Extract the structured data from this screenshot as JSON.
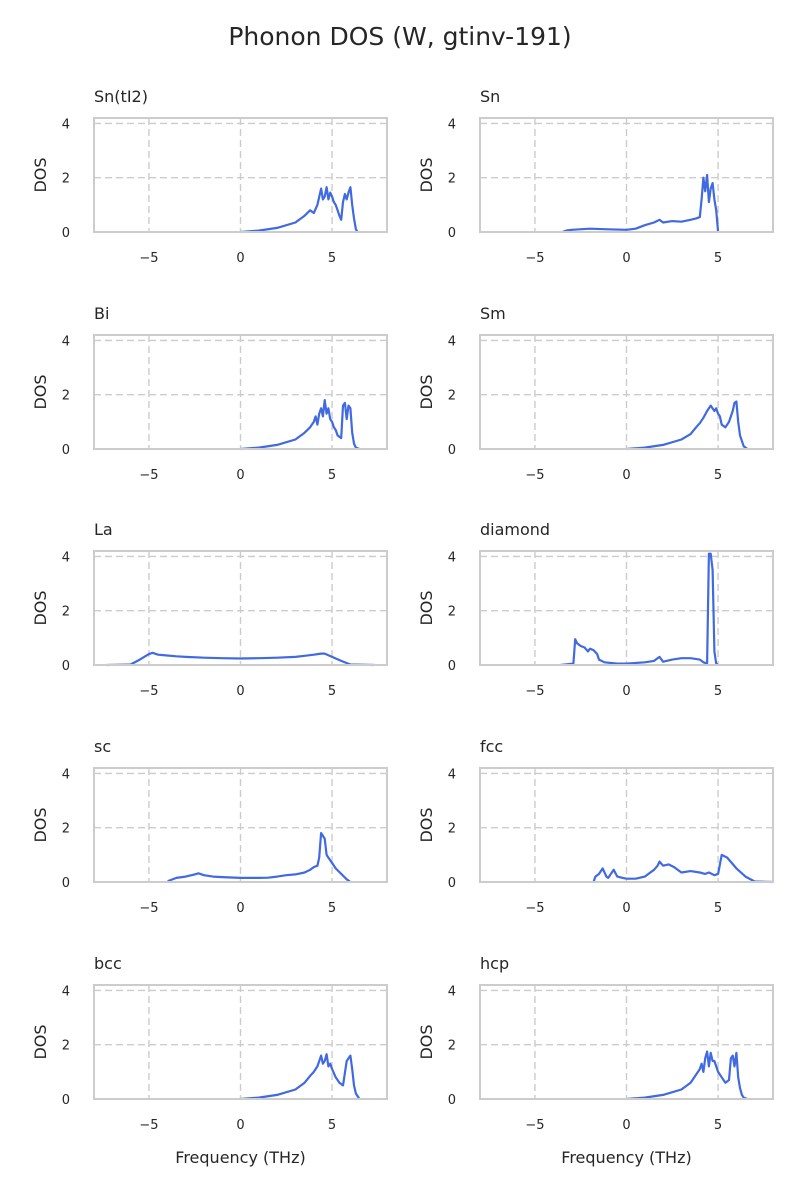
{
  "title": "Phonon DOS (W, gtinv-191)",
  "line_color": "#4169e1",
  "chart_data": [
    {
      "type": "line",
      "title": "Sn(tI2)",
      "xlabel": "",
      "ylabel": "DOS",
      "xlim": [
        -8,
        8
      ],
      "ylim": [
        0,
        4.2
      ],
      "xticks": [
        "−5",
        "0",
        "5"
      ],
      "yticks": [
        "0",
        "2",
        "4"
      ],
      "grid": true,
      "legend": "none",
      "x": [
        -8,
        0,
        1,
        2,
        3,
        3.5,
        3.8,
        4,
        4.2,
        4.4,
        4.5,
        4.6,
        4.7,
        4.8,
        4.9,
        5.0,
        5.1,
        5.2,
        5.3,
        5.4,
        5.5,
        5.6,
        5.7,
        5.8,
        5.9,
        6.0,
        6.1,
        6.2,
        6.3,
        6.4,
        8
      ],
      "y": [
        0,
        0,
        0.05,
        0.15,
        0.35,
        0.6,
        0.8,
        0.7,
        1.0,
        1.6,
        1.2,
        1.3,
        1.65,
        1.2,
        1.45,
        1.3,
        1.1,
        1.0,
        0.8,
        0.6,
        0.45,
        1.1,
        1.4,
        1.2,
        1.45,
        1.65,
        1.0,
        0.5,
        0.1,
        0,
        0
      ]
    },
    {
      "type": "line",
      "title": "Sn",
      "xlabel": "",
      "ylabel": "DOS",
      "xlim": [
        -8,
        8
      ],
      "ylim": [
        0,
        4.2
      ],
      "xticks": [
        "−5",
        "0",
        "5"
      ],
      "yticks": [
        "0",
        "2",
        "4"
      ],
      "grid": true,
      "legend": "none",
      "x": [
        -8,
        -3.5,
        -3.3,
        -3,
        -2,
        -1,
        0,
        0.5,
        1,
        1.5,
        1.8,
        2,
        2.5,
        3,
        3.5,
        3.8,
        4,
        4.1,
        4.2,
        4.3,
        4.4,
        4.5,
        4.6,
        4.7,
        4.8,
        4.9,
        5.0,
        8
      ],
      "y": [
        0,
        0,
        0.05,
        0.08,
        0.12,
        0.1,
        0.08,
        0.12,
        0.25,
        0.35,
        0.45,
        0.35,
        0.4,
        0.38,
        0.45,
        0.5,
        0.55,
        1.2,
        2.0,
        1.5,
        2.1,
        1.1,
        1.6,
        1.8,
        1.2,
        0.8,
        0,
        0
      ]
    },
    {
      "type": "line",
      "title": "Bi",
      "xlabel": "",
      "ylabel": "DOS",
      "xlim": [
        -8,
        8
      ],
      "ylim": [
        0,
        4.2
      ],
      "xticks": [
        "−5",
        "0",
        "5"
      ],
      "yticks": [
        "0",
        "2",
        "4"
      ],
      "grid": true,
      "legend": "none",
      "x": [
        -8,
        0,
        1,
        2,
        3,
        3.5,
        3.8,
        4,
        4.1,
        4.2,
        4.3,
        4.4,
        4.5,
        4.6,
        4.7,
        4.8,
        4.9,
        5.0,
        5.1,
        5.2,
        5.3,
        5.4,
        5.5,
        5.6,
        5.7,
        5.8,
        5.9,
        6.0,
        6.1,
        6.2,
        6.3,
        6.5,
        8
      ],
      "y": [
        0,
        0,
        0.05,
        0.15,
        0.35,
        0.6,
        0.8,
        1.0,
        1.2,
        0.9,
        1.3,
        1.5,
        1.2,
        1.8,
        1.3,
        1.5,
        1.1,
        1.0,
        0.8,
        0.7,
        0.5,
        0.45,
        0.4,
        1.6,
        1.7,
        1.1,
        1.6,
        1.5,
        0.6,
        0.2,
        0.05,
        0,
        0
      ]
    },
    {
      "type": "line",
      "title": "Sm",
      "xlabel": "",
      "ylabel": "DOS",
      "xlim": [
        -8,
        8
      ],
      "ylim": [
        0,
        4.2
      ],
      "xticks": [
        "−5",
        "0",
        "5"
      ],
      "yticks": [
        "0",
        "2",
        "4"
      ],
      "grid": true,
      "legend": "none",
      "x": [
        -8,
        0,
        1,
        2,
        3,
        3.5,
        3.8,
        4,
        4.2,
        4.4,
        4.6,
        4.8,
        4.9,
        5.0,
        5.1,
        5.2,
        5.4,
        5.6,
        5.8,
        5.9,
        6.0,
        6.1,
        6.2,
        6.4,
        6.6,
        8
      ],
      "y": [
        0,
        0,
        0.05,
        0.15,
        0.35,
        0.55,
        0.8,
        0.95,
        1.15,
        1.4,
        1.6,
        1.4,
        1.5,
        1.3,
        1.2,
        0.9,
        0.8,
        1.0,
        1.4,
        1.7,
        1.75,
        1.0,
        0.5,
        0.1,
        0,
        0
      ]
    },
    {
      "type": "line",
      "title": "La",
      "xlabel": "",
      "ylabel": "DOS",
      "xlim": [
        -8,
        8
      ],
      "ylim": [
        0,
        4.2
      ],
      "xticks": [
        "−5",
        "0",
        "5"
      ],
      "yticks": [
        "0",
        "2",
        "4"
      ],
      "grid": true,
      "legend": "none",
      "x": [
        -8,
        -7.3,
        -6,
        -5.5,
        -5,
        -4.8,
        -4.5,
        -4,
        -3.5,
        -3,
        -2,
        -1,
        0,
        1,
        2,
        3,
        3.5,
        4,
        4.4,
        4.6,
        5,
        5.5,
        6,
        7.3,
        8
      ],
      "y": [
        0,
        0,
        0.02,
        0.2,
        0.4,
        0.45,
        0.38,
        0.35,
        0.32,
        0.3,
        0.27,
        0.25,
        0.24,
        0.25,
        0.27,
        0.3,
        0.34,
        0.38,
        0.42,
        0.42,
        0.3,
        0.15,
        0.02,
        0,
        0
      ]
    },
    {
      "type": "line",
      "title": "diamond",
      "xlabel": "",
      "ylabel": "DOS",
      "xlim": [
        -8,
        8
      ],
      "ylim": [
        0,
        4.2
      ],
      "xticks": [
        "−5",
        "0",
        "5"
      ],
      "yticks": [
        "0",
        "2",
        "4"
      ],
      "grid": true,
      "legend": "none",
      "x": [
        -8,
        -3.6,
        -2.9,
        -2.8,
        -2.7,
        -2.5,
        -2.3,
        -2.1,
        -2,
        -1.8,
        -1.6,
        -1.5,
        -1.2,
        -0.5,
        0,
        1,
        1.5,
        1.8,
        2,
        2.5,
        3,
        3.5,
        4,
        4.2,
        4.4,
        4.5,
        4.55,
        4.6,
        4.7,
        4.8,
        4.9,
        5.0,
        8
      ],
      "y": [
        0,
        0,
        0.05,
        0.95,
        0.8,
        0.7,
        0.65,
        0.5,
        0.6,
        0.55,
        0.4,
        0.2,
        0.1,
        0.05,
        0.05,
        0.1,
        0.15,
        0.3,
        0.12,
        0.2,
        0.25,
        0.25,
        0.2,
        0.1,
        0.05,
        4.1,
        4.1,
        4.1,
        3.5,
        0.5,
        0.05,
        0,
        0
      ]
    },
    {
      "type": "line",
      "title": "sc",
      "xlabel": "",
      "ylabel": "DOS",
      "xlim": [
        -8,
        8
      ],
      "ylim": [
        0,
        4.2
      ],
      "xticks": [
        "−5",
        "0",
        "5"
      ],
      "yticks": [
        "0",
        "2",
        "4"
      ],
      "grid": true,
      "legend": "none",
      "x": [
        -8,
        -4,
        -3.9,
        -3.5,
        -3,
        -2.5,
        -2.3,
        -2,
        -1.5,
        -1,
        0,
        1,
        1.5,
        2,
        2.5,
        3,
        3.5,
        3.8,
        4,
        4.2,
        4.3,
        4.4,
        4.5,
        4.6,
        4.7,
        4.8,
        5.0,
        5.2,
        5.5,
        5.8,
        6,
        8
      ],
      "y": [
        0,
        0,
        0.05,
        0.15,
        0.2,
        0.28,
        0.32,
        0.25,
        0.2,
        0.18,
        0.15,
        0.15,
        0.16,
        0.2,
        0.25,
        0.28,
        0.35,
        0.45,
        0.55,
        0.6,
        0.9,
        1.8,
        1.7,
        1.6,
        1.0,
        0.9,
        0.7,
        0.5,
        0.3,
        0.1,
        0,
        0
      ]
    },
    {
      "type": "line",
      "title": "fcc",
      "xlabel": "",
      "ylabel": "DOS",
      "xlim": [
        -8,
        8
      ],
      "ylim": [
        0,
        4.2
      ],
      "xticks": [
        "−5",
        "0",
        "5"
      ],
      "yticks": [
        "0",
        "2",
        "4"
      ],
      "grid": true,
      "legend": "none",
      "x": [
        -8,
        -1.8,
        -1.7,
        -1.5,
        -1.3,
        -1.1,
        -1.0,
        -0.9,
        -0.7,
        -0.5,
        -0.2,
        0,
        0.5,
        1,
        1.3,
        1.5,
        1.7,
        1.8,
        2,
        2.3,
        2.6,
        3,
        3.5,
        4,
        4.3,
        4.5,
        4.8,
        5,
        5.2,
        5.5,
        6,
        6.5,
        7,
        8
      ],
      "y": [
        0,
        0,
        0.2,
        0.3,
        0.5,
        0.2,
        0.15,
        0.25,
        0.45,
        0.2,
        0.15,
        0.12,
        0.12,
        0.2,
        0.35,
        0.45,
        0.6,
        0.75,
        0.6,
        0.65,
        0.55,
        0.35,
        0.4,
        0.35,
        0.3,
        0.35,
        0.25,
        0.3,
        1.0,
        0.9,
        0.5,
        0.2,
        0.02,
        0
      ]
    },
    {
      "type": "line",
      "title": "bcc",
      "xlabel": "Frequency (THz)",
      "ylabel": "DOS",
      "xlim": [
        -8,
        8
      ],
      "ylim": [
        0,
        4.2
      ],
      "xticks": [
        "−5",
        "0",
        "5"
      ],
      "yticks": [
        "0",
        "2",
        "4"
      ],
      "grid": true,
      "legend": "none",
      "x": [
        -8,
        0,
        1,
        2,
        3,
        3.5,
        3.8,
        4,
        4.2,
        4.4,
        4.5,
        4.6,
        4.7,
        4.8,
        4.9,
        5.0,
        5.2,
        5.4,
        5.6,
        5.8,
        5.9,
        6.0,
        6.1,
        6.2,
        6.3,
        6.5,
        8
      ],
      "y": [
        0,
        0,
        0.05,
        0.15,
        0.35,
        0.6,
        0.85,
        1.0,
        1.2,
        1.6,
        1.3,
        1.4,
        1.65,
        1.2,
        1.3,
        1.1,
        0.8,
        0.6,
        0.5,
        1.4,
        1.5,
        1.6,
        1.1,
        0.5,
        0.2,
        0,
        0
      ]
    },
    {
      "type": "line",
      "title": "hcp",
      "xlabel": "Frequency (THz)",
      "ylabel": "DOS",
      "xlim": [
        -8,
        8
      ],
      "ylim": [
        0,
        4.2
      ],
      "xticks": [
        "−5",
        "0",
        "5"
      ],
      "yticks": [
        "0",
        "2",
        "4"
      ],
      "grid": true,
      "legend": "none",
      "x": [
        -8,
        0,
        1,
        2,
        3,
        3.5,
        3.8,
        4,
        4.1,
        4.2,
        4.3,
        4.4,
        4.5,
        4.6,
        4.7,
        4.8,
        4.9,
        5.0,
        5.2,
        5.4,
        5.6,
        5.7,
        5.8,
        5.9,
        6.0,
        6.1,
        6.2,
        6.3,
        6.4,
        6.6,
        8
      ],
      "y": [
        0,
        0,
        0.05,
        0.15,
        0.35,
        0.6,
        0.9,
        1.1,
        1.3,
        1.0,
        1.5,
        1.75,
        1.2,
        1.7,
        1.4,
        1.4,
        1.2,
        1.0,
        0.8,
        0.6,
        0.7,
        1.5,
        1.6,
        1.2,
        1.7,
        0.8,
        0.4,
        0.15,
        0.05,
        0,
        0
      ]
    }
  ]
}
